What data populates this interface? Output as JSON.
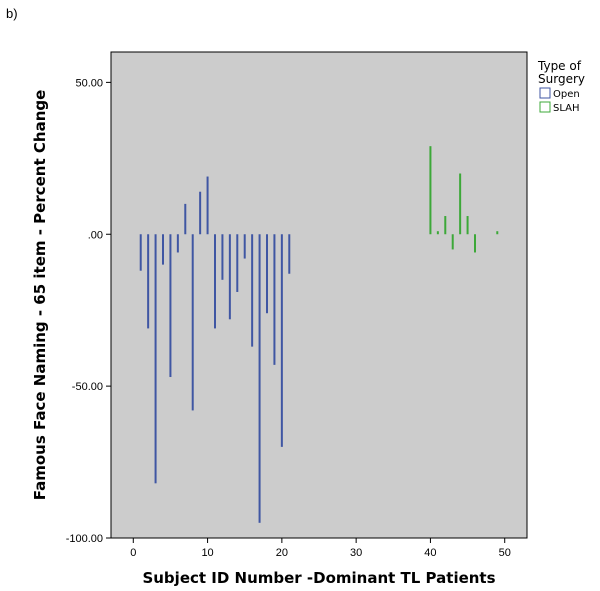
{
  "panel_label": "b)",
  "chart_data": {
    "type": "bar",
    "title": "",
    "xlabel": "Subject ID Number -Dominant TL Patients",
    "ylabel": "Famous Face Naming - 65 item - Percent Change",
    "xlim": [
      -3,
      53
    ],
    "ylim": [
      -100,
      60
    ],
    "x_ticks": [
      0,
      10,
      20,
      30,
      40,
      50
    ],
    "x_tick_labels": [
      "0",
      "10",
      "20",
      "30",
      "40",
      "50"
    ],
    "y_ticks": [
      50,
      0,
      -50,
      -100
    ],
    "y_tick_labels": [
      "50.00",
      ".00",
      "-50.00",
      "-100.00"
    ],
    "grid": false,
    "legend_position": "right",
    "legend_title": "Type of\nSurgery",
    "series": [
      {
        "name": "Open",
        "color": "#3f56a3",
        "x": [
          1,
          2,
          3,
          4,
          5,
          6,
          7,
          8,
          9,
          10,
          11,
          12,
          13,
          14,
          15,
          16,
          17,
          18,
          19,
          20,
          21
        ],
        "values": [
          -12,
          -31,
          -82,
          -10,
          -47,
          -6,
          10,
          -58,
          14,
          19,
          -31,
          -15,
          -28,
          -19,
          -8,
          -37,
          -95,
          -26,
          -43,
          -70,
          -13
        ]
      },
      {
        "name": "SLAH",
        "color": "#3ca838",
        "x": [
          40,
          41,
          42,
          43,
          44,
          45,
          46,
          49
        ],
        "values": [
          29,
          1,
          6,
          -5,
          20,
          6,
          -6,
          1
        ]
      }
    ]
  }
}
